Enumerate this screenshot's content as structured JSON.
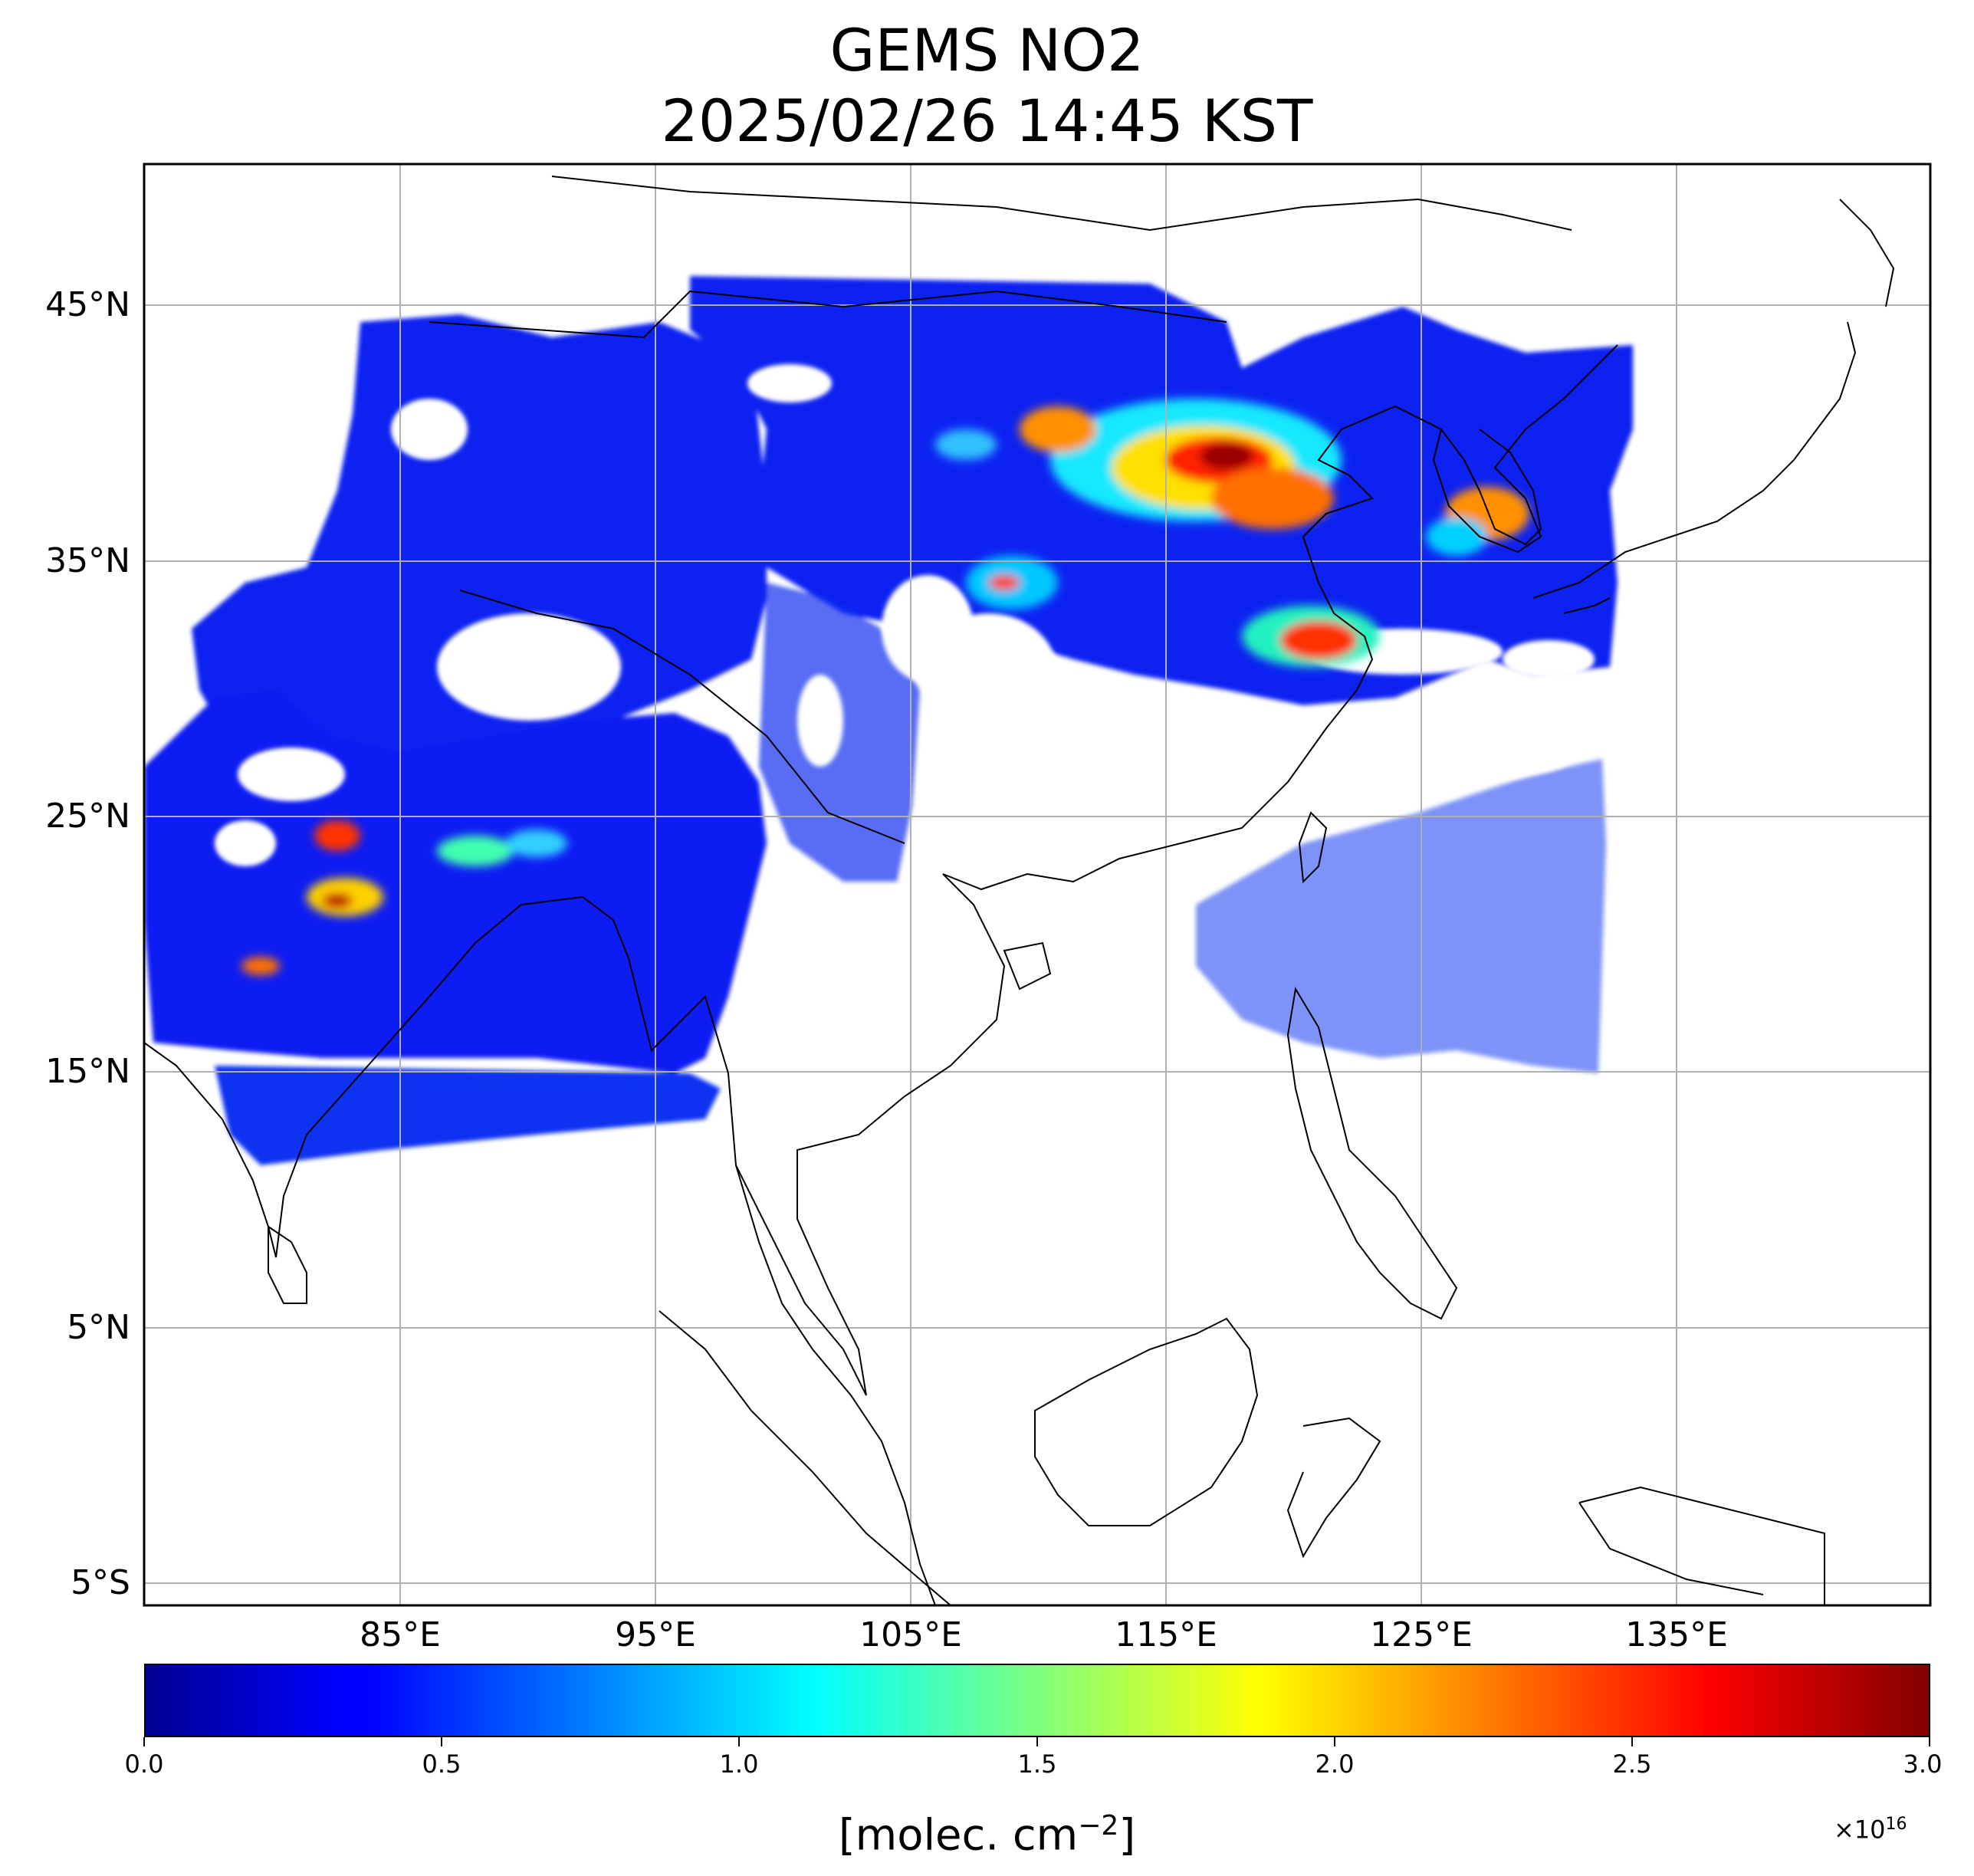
{
  "title": {
    "line1": "GEMS NO2",
    "line2": "2025/02/26 14:45 KST"
  },
  "map": {
    "projection": "PlateCarree",
    "lon_range": [
      75,
      145
    ],
    "lat_range": [
      -6,
      51
    ],
    "grid": true,
    "lat_ticks": [
      45,
      35,
      25,
      15,
      5,
      -5
    ],
    "lat_tick_labels": [
      "45°N",
      "35°N",
      "25°N",
      "15°N",
      "5°N",
      "5°S"
    ],
    "lon_ticks": [
      85,
      95,
      105,
      115,
      125,
      135
    ],
    "lon_tick_labels": [
      "85°E",
      "95°E",
      "105°E",
      "115°E",
      "125°E",
      "135°E"
    ],
    "colors": {
      "grid": "#b0b0b0",
      "coast": "#000000",
      "frame": "#000000"
    }
  },
  "colorbar": {
    "colormap": "jet",
    "range": [
      0.0,
      3.0
    ],
    "tick_values": [
      0.0,
      0.5,
      1.0,
      1.5,
      2.0,
      2.5,
      3.0
    ],
    "tick_labels": [
      "0.0",
      "0.5",
      "1.0",
      "1.5",
      "2.0",
      "2.5",
      "3.0"
    ],
    "scale_prefix": "×10",
    "scale_exponent": "16",
    "unit_main": "[molec. cm",
    "unit_exponent": "−2",
    "unit_close": "]",
    "colors": [
      "#00008f",
      "#0000ff",
      "#00ffff",
      "#ffff00",
      "#ff0000",
      "#800000"
    ]
  }
}
